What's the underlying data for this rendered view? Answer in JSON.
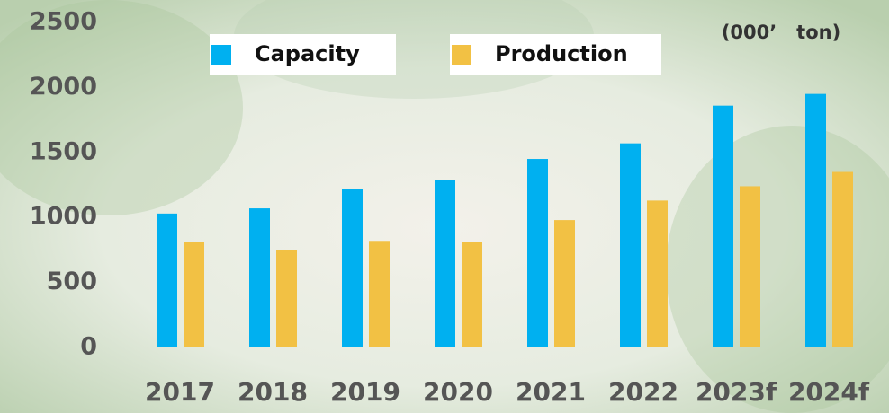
{
  "chart_data": {
    "type": "bar",
    "unit_label": "(000’   ton)",
    "categories": [
      "2017",
      "2018",
      "2019",
      "2020",
      "2021",
      "2022",
      "2023f",
      "2024f"
    ],
    "series": [
      {
        "name": "Capacity",
        "color": "#00b0f0",
        "values": [
          1030,
          1070,
          1220,
          1285,
          1450,
          1570,
          1860,
          1950
        ]
      },
      {
        "name": "Production",
        "color": "#f2c144",
        "values": [
          810,
          750,
          820,
          810,
          980,
          1130,
          1240,
          1350
        ]
      }
    ],
    "ylim": [
      0,
      2500
    ],
    "yticks": [
      0,
      500,
      1000,
      1500,
      2000,
      2500
    ],
    "grid": false
  }
}
